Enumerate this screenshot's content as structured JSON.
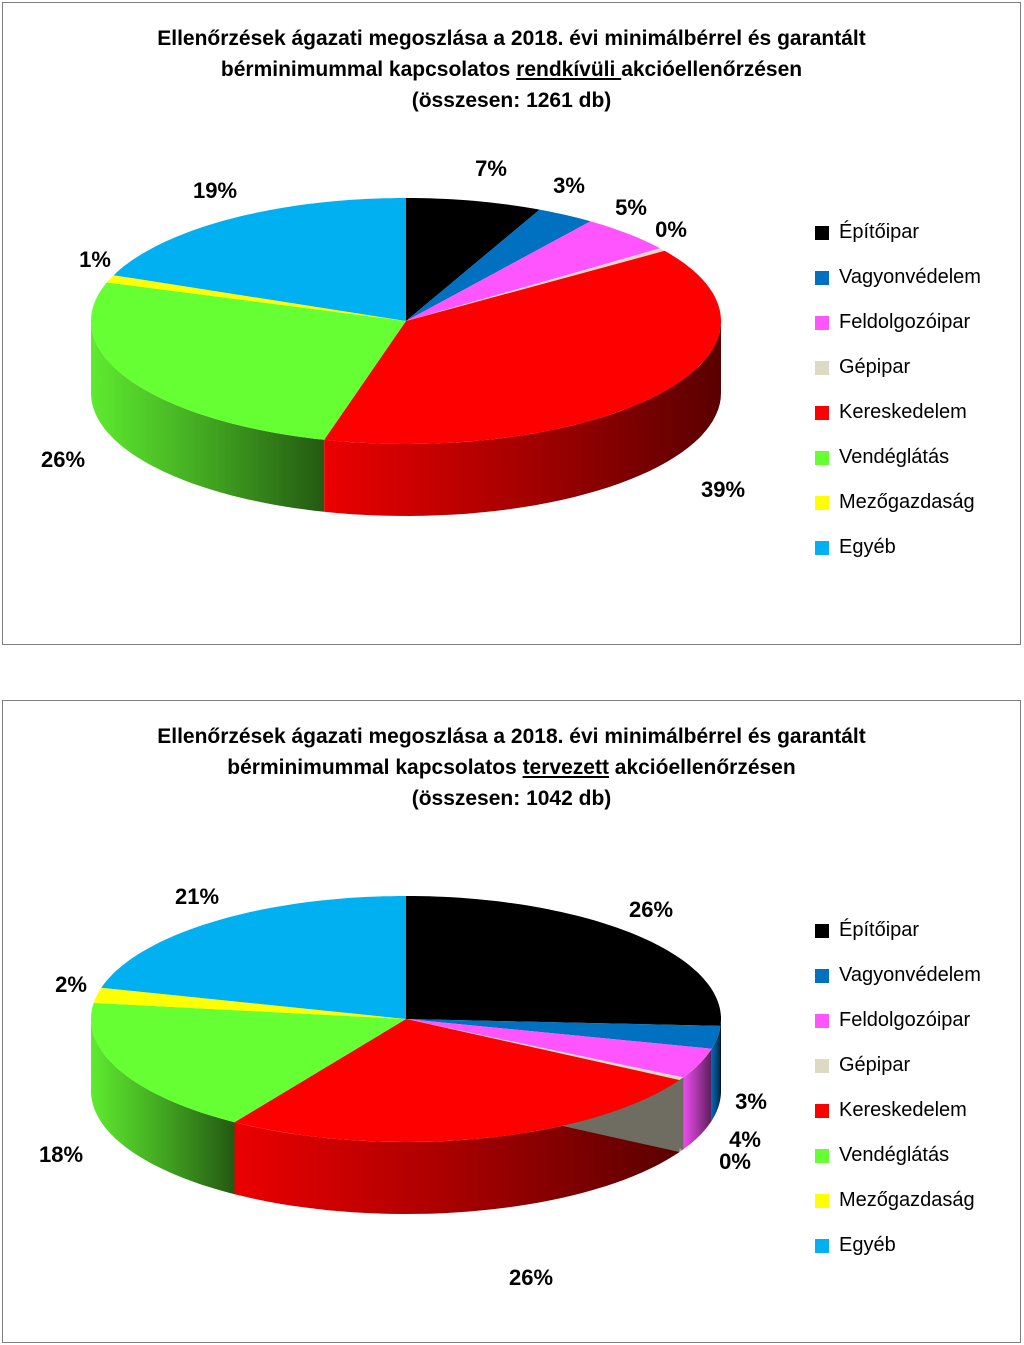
{
  "chart_data": [
    {
      "type": "pie",
      "title": {
        "line1": "Ellenőrzések ágazati megoszlása a 2018. évi minimálbérrel és garantált",
        "line2_pre": "bérminimummal kapcsolatos ",
        "line2_underlined": "rendkívüli ",
        "line2_post": "akcióellenőrzésen",
        "line3": "(összesen: 1261 db)"
      },
      "categories": [
        "Építőipar",
        "Vagyonvédelem",
        "Feldolgozóipar",
        "Gépipar",
        "Kereskedelem",
        "Vendéglátás",
        "Mezőgazdaság",
        "Egyéb"
      ],
      "values": [
        7,
        3,
        5,
        0.4,
        39,
        26,
        1,
        19
      ],
      "labels": [
        "7%",
        "3%",
        "5%",
        "0%",
        "39%",
        "26%",
        "1%",
        "19%"
      ],
      "legend_position": "right"
    },
    {
      "type": "pie",
      "title": {
        "line1": "Ellenőrzések ágazati megoszlása a 2018. évi minimálbérrel és garantált",
        "line2_pre": "bérminimummal kapcsolatos ",
        "line2_underlined": "tervezett",
        "line2_post": " akcióellenőrzésen",
        "line3": "(összesen: 1042 db)"
      },
      "categories": [
        "Építőipar",
        "Vagyonvédelem",
        "Feldolgozóipar",
        "Gépipar",
        "Kereskedelem",
        "Vendéglátás",
        "Mezőgazdaság",
        "Egyéb"
      ],
      "values": [
        26,
        3,
        4,
        0.4,
        26,
        18,
        2,
        21
      ],
      "labels": [
        "26%",
        "3%",
        "4%",
        "0%",
        "26%",
        "18%",
        "2%",
        "21%"
      ],
      "legend_position": "right"
    }
  ],
  "colors": [
    "#000000",
    "#0070c0",
    "#ff55ff",
    "#ddd9c3",
    "#ff0000",
    "#66ff33",
    "#ffff00",
    "#00b0f0"
  ]
}
